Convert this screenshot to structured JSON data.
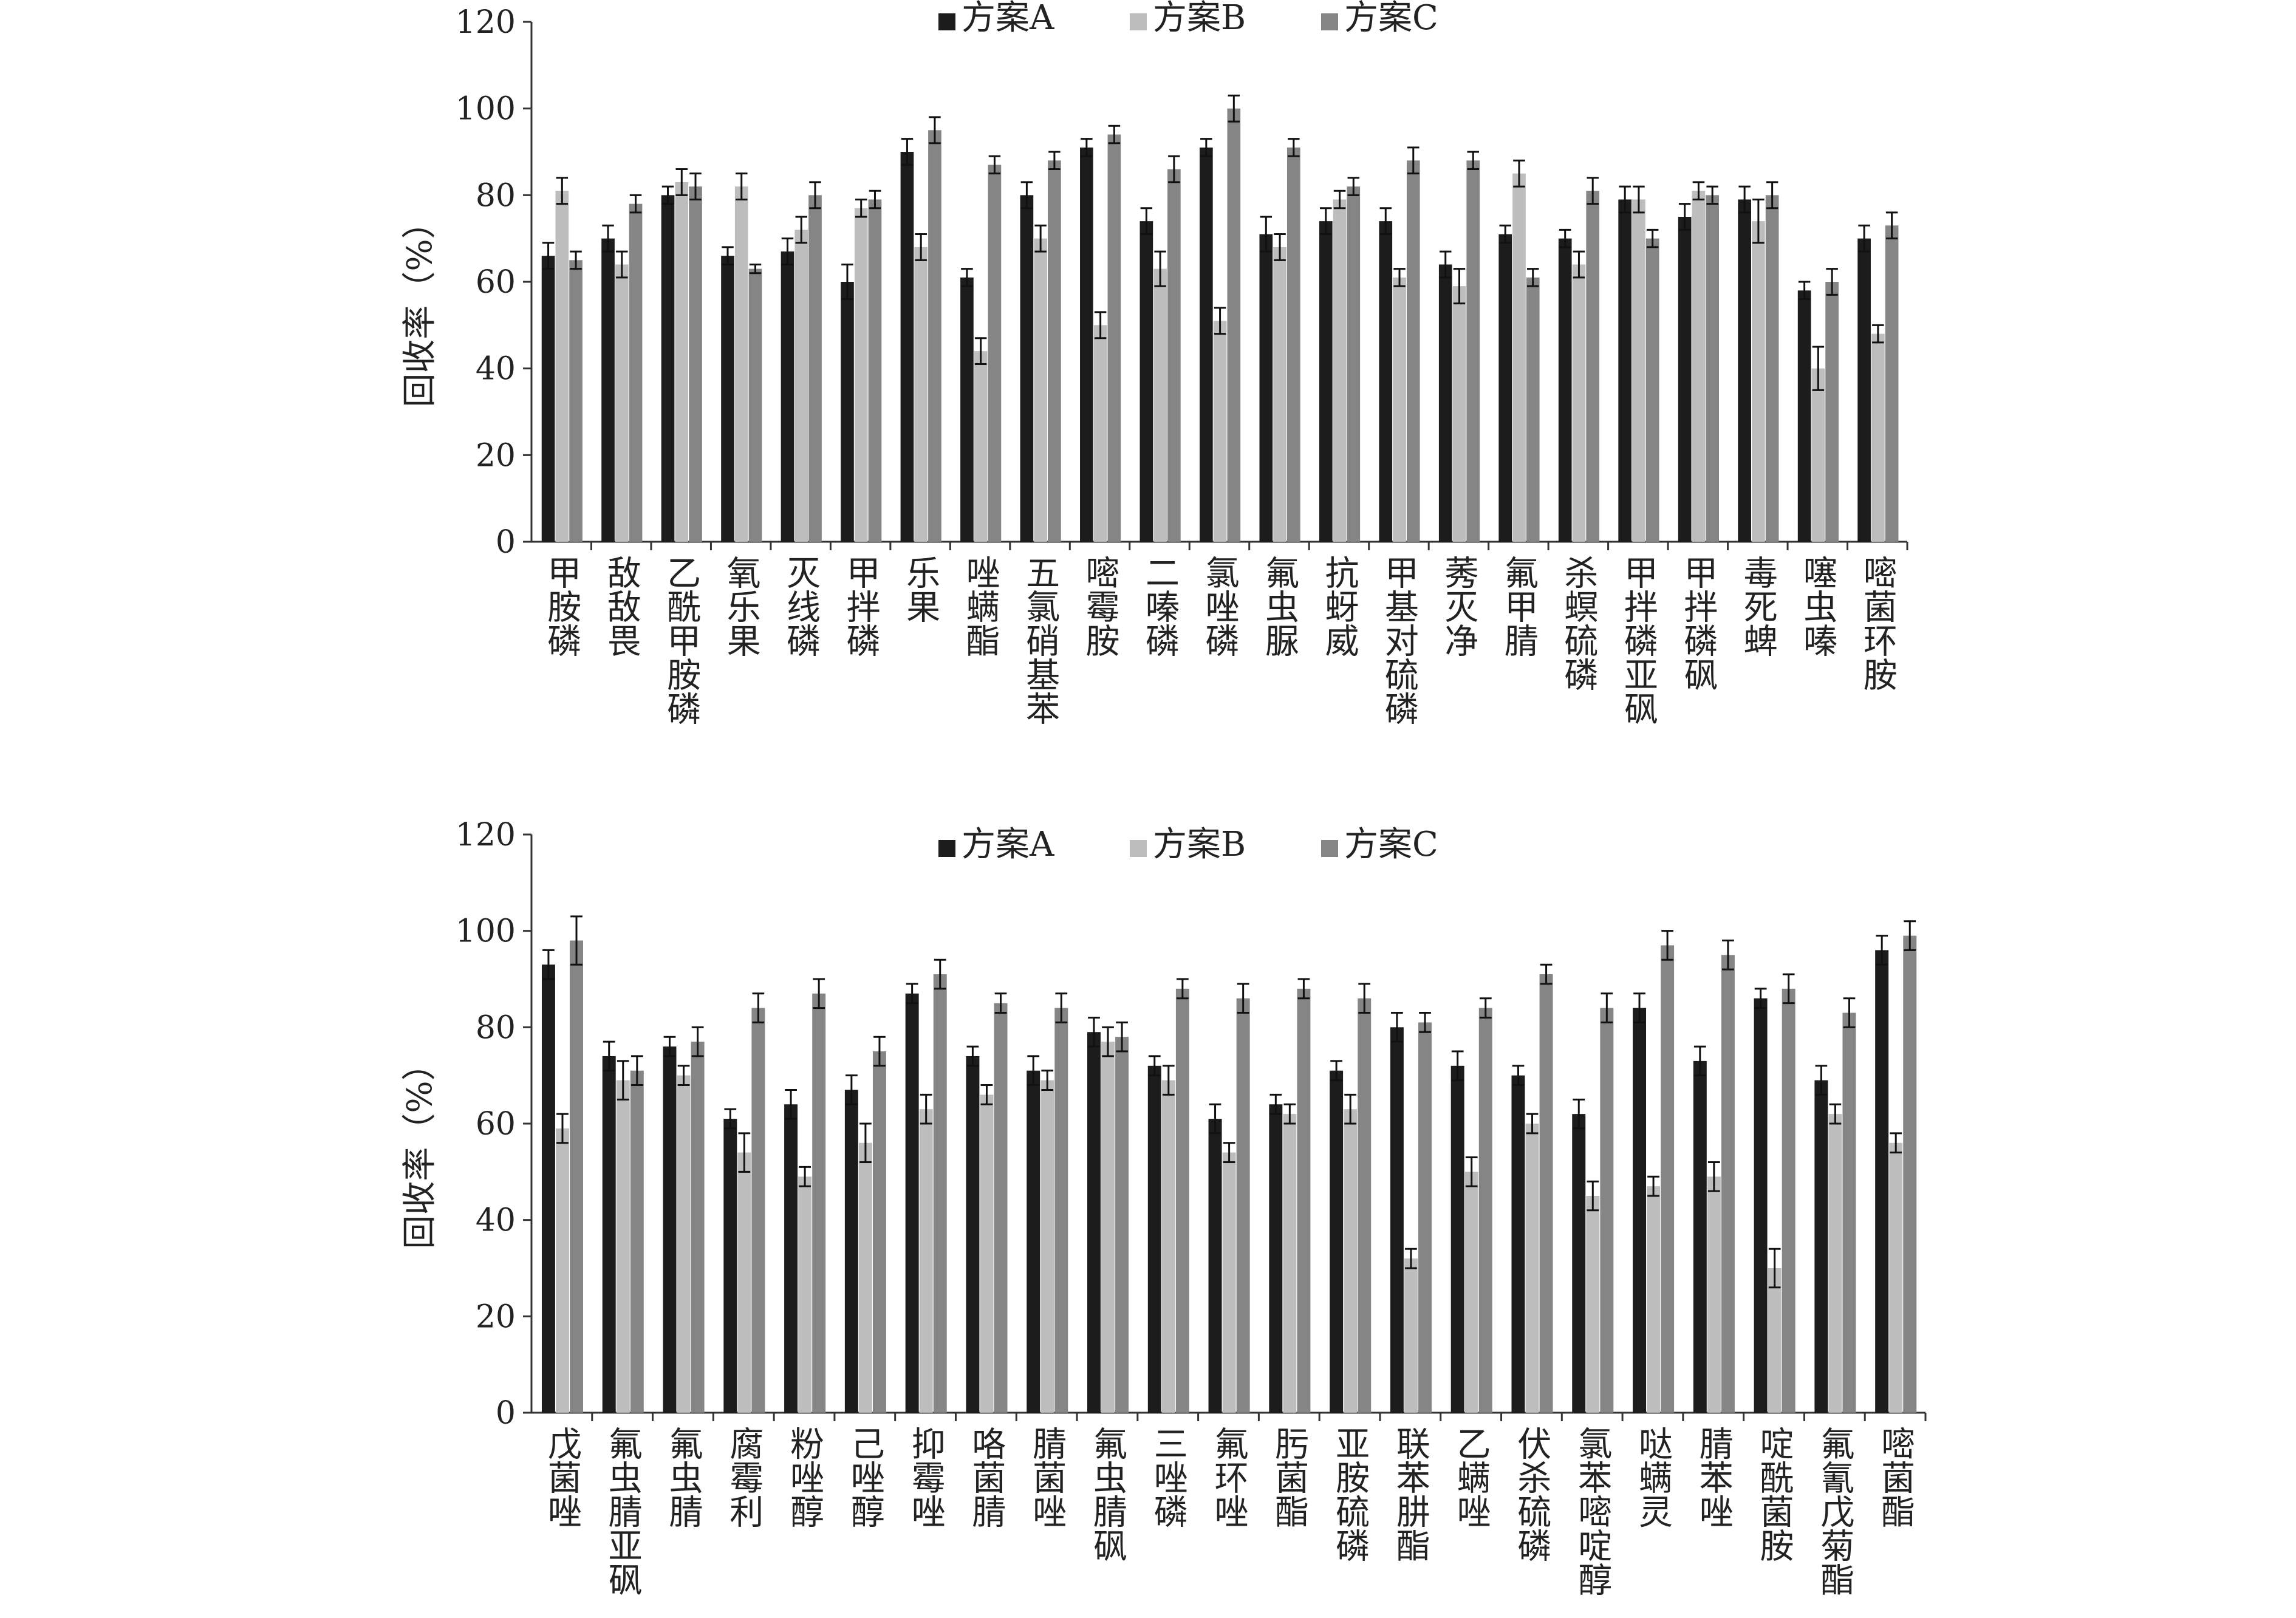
{
  "chart_data": [
    {
      "type": "bar",
      "ylabel": "回收率（%）",
      "ylim": [
        0,
        120
      ],
      "yticks": [
        0,
        20,
        40,
        60,
        80,
        100,
        120
      ],
      "legend_position": "top-center",
      "categories": [
        "甲胺磷",
        "敌敌畏",
        "乙酰甲胺磷",
        "氧乐果",
        "灭线磷",
        "甲拌磷",
        "乐果",
        "唑螨酯",
        "五氯硝基苯",
        "嘧霉胺",
        "二嗪磷",
        "氯唑磷",
        "氟虫脲",
        "抗蚜威",
        "甲基对硫磷",
        "莠灭净",
        "氟甲腈",
        "杀螟硫磷",
        "甲拌磷亚砜",
        "甲拌磷砜",
        "毒死蜱",
        "噻虫嗪",
        "嘧菌环胺"
      ],
      "series": [
        {
          "name": "方案A",
          "color": "#1c1c1c",
          "values": [
            66,
            70,
            80,
            66,
            67,
            60,
            90,
            61,
            80,
            91,
            74,
            91,
            71,
            74,
            74,
            64,
            71,
            70,
            79,
            75,
            79,
            58,
            70
          ],
          "errors": [
            3,
            3,
            2,
            2,
            3,
            4,
            3,
            2,
            3,
            2,
            3,
            2,
            4,
            3,
            3,
            3,
            2,
            2,
            3,
            3,
            3,
            2,
            3
          ]
        },
        {
          "name": "方案B",
          "color": "#bdbdbd",
          "values": [
            81,
            64,
            83,
            82,
            72,
            77,
            68,
            44,
            70,
            50,
            63,
            51,
            68,
            79,
            61,
            59,
            85,
            64,
            79,
            81,
            74,
            40,
            48
          ],
          "errors": [
            3,
            3,
            3,
            3,
            3,
            2,
            3,
            3,
            3,
            3,
            4,
            3,
            3,
            2,
            2,
            4,
            3,
            3,
            3,
            2,
            5,
            5,
            2
          ]
        },
        {
          "name": "方案C",
          "color": "#858585",
          "values": [
            65,
            78,
            82,
            63,
            80,
            79,
            95,
            87,
            88,
            94,
            86,
            100,
            91,
            82,
            88,
            88,
            61,
            81,
            70,
            80,
            80,
            60,
            73
          ],
          "errors": [
            2,
            2,
            3,
            1,
            3,
            2,
            3,
            2,
            2,
            2,
            3,
            3,
            2,
            2,
            3,
            2,
            2,
            3,
            2,
            2,
            3,
            3,
            3
          ]
        }
      ]
    },
    {
      "type": "bar",
      "ylabel": "回收率（%）",
      "ylim": [
        0,
        120
      ],
      "yticks": [
        0,
        20,
        40,
        60,
        80,
        100,
        120
      ],
      "legend_position": "top-center",
      "categories": [
        "戊菌唑",
        "氟虫腈亚砜",
        "氟虫腈",
        "腐霉利",
        "粉唑醇",
        "己唑醇",
        "抑霉唑",
        "咯菌腈",
        "腈菌唑",
        "氟虫腈砜",
        "三唑磷",
        "氟环唑",
        "肟菌酯",
        "亚胺硫磷",
        "联苯肼酯",
        "乙螨唑",
        "伏杀硫磷",
        "氯苯嘧啶醇",
        "哒螨灵",
        "腈苯唑",
        "啶酰菌胺",
        "氟氰戊菊酯",
        "嘧菌酯"
      ],
      "series": [
        {
          "name": "方案A",
          "color": "#1c1c1c",
          "values": [
            93,
            74,
            76,
            61,
            64,
            67,
            87,
            74,
            71,
            79,
            72,
            61,
            64,
            71,
            80,
            72,
            70,
            62,
            84,
            73,
            86,
            69,
            96
          ],
          "errors": [
            3,
            3,
            2,
            2,
            3,
            3,
            2,
            2,
            3,
            3,
            2,
            3,
            2,
            2,
            3,
            3,
            2,
            3,
            3,
            3,
            2,
            3,
            3
          ]
        },
        {
          "name": "方案B",
          "color": "#bdbdbd",
          "values": [
            59,
            69,
            70,
            54,
            49,
            56,
            63,
            66,
            69,
            77,
            69,
            54,
            62,
            63,
            32,
            50,
            60,
            45,
            47,
            49,
            30,
            62,
            56
          ],
          "errors": [
            3,
            4,
            2,
            4,
            2,
            4,
            3,
            2,
            2,
            3,
            3,
            2,
            2,
            3,
            2,
            3,
            2,
            3,
            2,
            3,
            4,
            2,
            2
          ]
        },
        {
          "name": "方案C",
          "color": "#858585",
          "values": [
            98,
            71,
            77,
            84,
            87,
            75,
            91,
            85,
            84,
            78,
            88,
            86,
            88,
            86,
            81,
            84,
            91,
            84,
            97,
            95,
            88,
            83,
            99
          ],
          "errors": [
            5,
            3,
            3,
            3,
            3,
            3,
            3,
            2,
            3,
            3,
            2,
            3,
            2,
            3,
            2,
            2,
            2,
            3,
            3,
            3,
            3,
            3,
            3
          ]
        }
      ]
    }
  ]
}
